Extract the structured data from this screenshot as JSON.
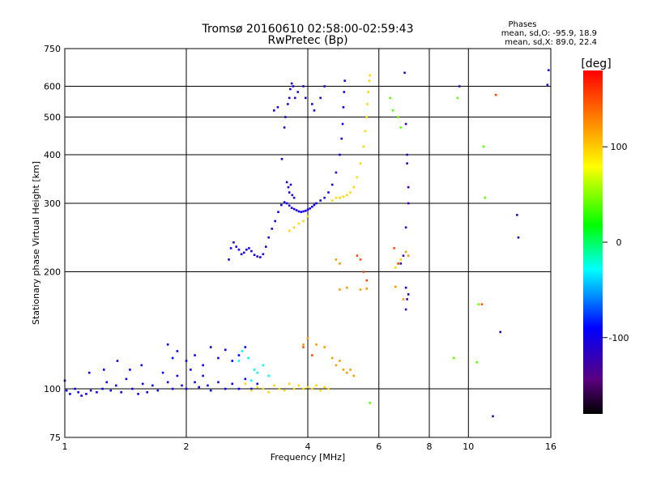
{
  "chart_data": {
    "type": "scatter",
    "title": "Tromsø 20160610 02:58:00-02:59:43",
    "subtitle": "RwPretec (Bp)",
    "xlabel": "Frequency [MHz]",
    "ylabel": "Stationary phase Virtual Height [km]",
    "x_scale": "log",
    "y_scale": "log",
    "xlim": [
      1,
      16
    ],
    "ylim": [
      75,
      750
    ],
    "x_ticks": [
      1,
      2,
      4,
      6,
      8,
      10,
      16
    ],
    "y_ticks": [
      75,
      100,
      200,
      300,
      400,
      500,
      600,
      750
    ],
    "grid": true,
    "stats": {
      "heading": "Phases",
      "line_o": "mean, sd,O: -95.9, 18.9",
      "line_x": "mean, sd,X:  89.0, 22.4"
    },
    "colorbar": {
      "label": "[deg]",
      "ticks": [
        100,
        0,
        -100
      ],
      "range": [
        -180,
        180
      ]
    },
    "series": [
      {
        "phase_deg": -95,
        "points": [
          [
            1.0,
            105
          ],
          [
            1.01,
            99
          ],
          [
            1.03,
            97
          ],
          [
            1.06,
            100
          ],
          [
            1.08,
            98
          ],
          [
            1.1,
            96
          ],
          [
            1.13,
            97
          ],
          [
            1.16,
            99
          ],
          [
            1.2,
            98
          ],
          [
            1.24,
            100
          ],
          [
            1.27,
            104
          ],
          [
            1.3,
            99
          ],
          [
            1.34,
            102
          ],
          [
            1.38,
            98
          ],
          [
            1.42,
            106
          ],
          [
            1.47,
            100
          ],
          [
            1.52,
            97
          ],
          [
            1.56,
            103
          ],
          [
            1.6,
            98
          ],
          [
            1.65,
            102
          ],
          [
            1.7,
            99
          ],
          [
            1.75,
            110
          ],
          [
            1.8,
            104
          ],
          [
            1.85,
            100
          ],
          [
            1.9,
            108
          ],
          [
            1.95,
            102
          ],
          [
            2.0,
            100
          ],
          [
            2.05,
            112
          ],
          [
            2.1,
            104
          ],
          [
            2.15,
            101
          ],
          [
            2.2,
            108
          ],
          [
            2.26,
            102
          ],
          [
            2.3,
            99
          ],
          [
            2.4,
            104
          ],
          [
            2.5,
            100
          ],
          [
            2.6,
            103
          ],
          [
            2.7,
            100
          ],
          [
            2.8,
            106
          ],
          [
            2.9,
            100
          ],
          [
            3.0,
            103
          ]
        ]
      },
      {
        "phase_deg": -100,
        "points": [
          [
            2.55,
            215
          ],
          [
            2.58,
            230
          ],
          [
            2.62,
            238
          ],
          [
            2.66,
            232
          ],
          [
            2.7,
            228
          ],
          [
            2.74,
            222
          ],
          [
            2.78,
            224
          ],
          [
            2.82,
            228
          ],
          [
            2.86,
            230
          ],
          [
            2.9,
            226
          ],
          [
            2.95,
            221
          ],
          [
            3.0,
            219
          ],
          [
            3.05,
            218
          ],
          [
            3.1,
            222
          ],
          [
            3.15,
            232
          ],
          [
            3.2,
            245
          ],
          [
            3.26,
            258
          ],
          [
            3.32,
            270
          ],
          [
            3.38,
            285
          ],
          [
            3.44,
            297
          ],
          [
            3.5,
            302
          ],
          [
            3.55,
            300
          ],
          [
            3.6,
            296
          ],
          [
            3.65,
            292
          ],
          [
            3.7,
            290
          ],
          [
            3.75,
            288
          ],
          [
            3.8,
            286
          ],
          [
            3.85,
            285
          ],
          [
            3.9,
            286
          ],
          [
            3.95,
            287
          ],
          [
            4.0,
            289
          ],
          [
            4.05,
            291
          ],
          [
            4.1,
            294
          ],
          [
            4.15,
            297
          ],
          [
            4.2,
            300
          ],
          [
            4.3,
            305
          ],
          [
            4.4,
            310
          ],
          [
            4.5,
            320
          ],
          [
            4.6,
            335
          ],
          [
            4.7,
            360
          ],
          [
            4.8,
            400
          ],
          [
            4.85,
            440
          ],
          [
            4.88,
            480
          ],
          [
            4.9,
            530
          ],
          [
            4.92,
            580
          ],
          [
            4.94,
            620
          ]
        ]
      },
      {
        "phase_deg": -110,
        "points": [
          [
            3.55,
            340
          ],
          [
            3.58,
            330
          ],
          [
            3.6,
            320
          ],
          [
            3.63,
            335
          ],
          [
            3.66,
            315
          ],
          [
            3.7,
            310
          ],
          [
            3.45,
            390
          ],
          [
            3.5,
            470
          ],
          [
            3.52,
            500
          ],
          [
            3.57,
            540
          ],
          [
            3.6,
            560
          ],
          [
            3.62,
            590
          ],
          [
            3.65,
            610
          ],
          [
            3.68,
            600
          ],
          [
            3.72,
            560
          ],
          [
            3.78,
            580
          ],
          [
            3.9,
            600
          ],
          [
            3.95,
            560
          ],
          [
            4.1,
            540
          ],
          [
            4.15,
            520
          ],
          [
            4.3,
            560
          ],
          [
            4.4,
            600
          ],
          [
            3.3,
            520
          ],
          [
            3.37,
            530
          ]
        ]
      },
      {
        "phase_deg": -90,
        "points": [
          [
            1.8,
            130
          ],
          [
            1.85,
            120
          ],
          [
            1.9,
            125
          ],
          [
            2.0,
            118
          ],
          [
            2.1,
            122
          ],
          [
            2.2,
            115
          ],
          [
            2.3,
            128
          ],
          [
            2.4,
            120
          ],
          [
            2.5,
            126
          ],
          [
            2.6,
            118
          ],
          [
            2.7,
            122
          ],
          [
            2.8,
            128
          ],
          [
            1.55,
            115
          ],
          [
            1.45,
            112
          ],
          [
            1.35,
            118
          ],
          [
            1.25,
            112
          ],
          [
            1.15,
            110
          ]
        ]
      },
      {
        "phase_deg": -30,
        "points": [
          [
            2.7,
            118
          ],
          [
            2.75,
            125
          ],
          [
            2.85,
            120
          ],
          [
            3.0,
            110
          ],
          [
            3.1,
            115
          ],
          [
            2.9,
            105
          ],
          [
            2.95,
            112
          ],
          [
            3.2,
            108
          ]
        ]
      },
      {
        "phase_deg": 95,
        "points": [
          [
            2.8,
            103
          ],
          [
            2.9,
            99
          ],
          [
            3.0,
            101
          ],
          [
            3.1,
            100
          ],
          [
            3.2,
            98
          ],
          [
            3.3,
            102
          ],
          [
            3.4,
            100
          ],
          [
            3.5,
            99
          ],
          [
            3.6,
            103
          ],
          [
            3.7,
            100
          ],
          [
            3.8,
            102
          ],
          [
            3.9,
            100
          ],
          [
            4.0,
            101
          ],
          [
            4.1,
            100
          ],
          [
            4.2,
            102
          ],
          [
            4.3,
            99
          ],
          [
            4.4,
            101
          ],
          [
            4.5,
            100
          ],
          [
            3.6,
            255
          ],
          [
            3.7,
            260
          ],
          [
            3.8,
            266
          ],
          [
            3.9,
            270
          ],
          [
            4.0,
            278
          ],
          [
            4.6,
            305
          ],
          [
            4.7,
            310
          ],
          [
            4.8,
            310
          ],
          [
            4.9,
            312
          ],
          [
            5.0,
            315
          ],
          [
            5.1,
            320
          ],
          [
            5.2,
            330
          ],
          [
            5.3,
            350
          ],
          [
            5.4,
            380
          ],
          [
            5.5,
            420
          ],
          [
            5.55,
            460
          ],
          [
            5.6,
            500
          ],
          [
            5.62,
            540
          ],
          [
            5.65,
            580
          ],
          [
            5.68,
            620
          ],
          [
            5.7,
            640
          ],
          [
            6.6,
            205
          ],
          [
            6.7,
            210
          ],
          [
            6.8,
            215
          ]
        ]
      },
      {
        "phase_deg": 120,
        "points": [
          [
            4.7,
            115
          ],
          [
            4.8,
            118
          ],
          [
            4.9,
            112
          ],
          [
            5.0,
            110
          ],
          [
            5.1,
            112
          ],
          [
            5.2,
            108
          ],
          [
            3.9,
            130
          ],
          [
            4.0,
            135
          ],
          [
            4.2,
            130
          ],
          [
            4.4,
            128
          ],
          [
            4.6,
            120
          ],
          [
            4.8,
            180
          ],
          [
            5.0,
            182
          ],
          [
            5.4,
            180
          ],
          [
            5.6,
            181
          ],
          [
            4.7,
            215
          ],
          [
            4.8,
            210
          ],
          [
            6.6,
            183
          ],
          [
            6.9,
            170
          ],
          [
            7.0,
            225
          ],
          [
            7.1,
            220
          ]
        ]
      },
      {
        "phase_deg": -120,
        "points": [
          [
            7.0,
            160
          ],
          [
            7.05,
            170
          ],
          [
            7.1,
            175
          ],
          [
            7.0,
            182
          ],
          [
            7.1,
            300
          ],
          [
            7.1,
            330
          ],
          [
            7.05,
            380
          ],
          [
            7.05,
            400
          ],
          [
            7.0,
            260
          ],
          [
            6.9,
            220
          ],
          [
            6.8,
            210
          ],
          [
            7.0,
            480
          ],
          [
            6.95,
            650
          ],
          [
            9.5,
            600
          ],
          [
            15.8,
            660
          ],
          [
            15.7,
            605
          ],
          [
            13.2,
            280
          ],
          [
            13.3,
            245
          ],
          [
            12.0,
            140
          ],
          [
            11.5,
            85
          ]
        ]
      },
      {
        "phase_deg": 40,
        "points": [
          [
            9.2,
            120
          ],
          [
            10.5,
            117
          ],
          [
            9.4,
            560
          ],
          [
            6.4,
            560
          ],
          [
            6.5,
            520
          ],
          [
            6.7,
            500
          ],
          [
            6.8,
            470
          ],
          [
            5.7,
            92
          ],
          [
            10.9,
            420
          ],
          [
            10.6,
            165
          ],
          [
            11.0,
            310
          ]
        ]
      },
      {
        "phase_deg": 150,
        "points": [
          [
            3.9,
            128
          ],
          [
            4.1,
            122
          ],
          [
            5.3,
            220
          ],
          [
            5.4,
            215
          ],
          [
            5.5,
            200
          ],
          [
            5.6,
            190
          ],
          [
            6.7,
            210
          ],
          [
            11.7,
            570
          ],
          [
            10.8,
            165
          ],
          [
            6.55,
            230
          ]
        ]
      }
    ]
  }
}
